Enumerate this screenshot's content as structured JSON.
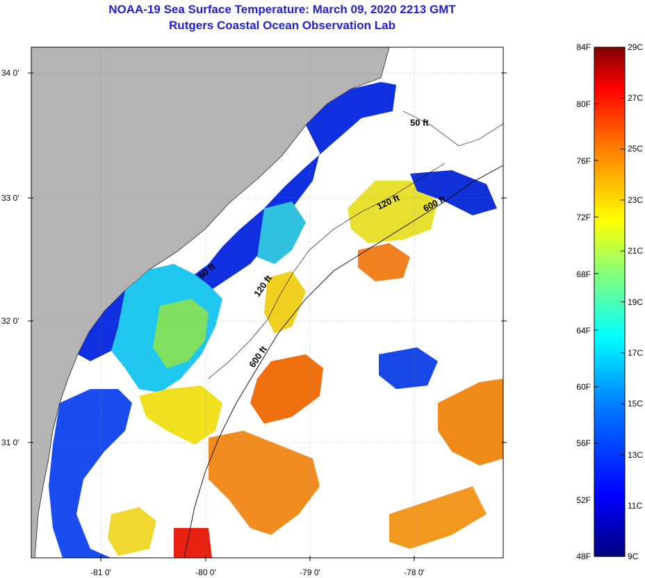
{
  "title": "NOAA-19 Sea Surface Temperature:  March 09, 2020 2213 GMT",
  "subtitle": "Rutgers Coastal Ocean Observation Lab",
  "lat_labels": [
    "34 0'",
    "33 0'",
    "32 0'",
    "31 0'"
  ],
  "lon_labels": [
    "-81 0'",
    "-80 0'",
    "-79 0'",
    "-78 0'"
  ],
  "contour_labels": [
    "50 ft",
    "120 ft",
    "600 ft",
    "60 ft",
    "120 ft",
    "600 ft"
  ],
  "colorbar": {
    "fahrenheit": [
      "84F",
      "80F",
      "76F",
      "72F",
      "68F",
      "64F",
      "60F",
      "56F",
      "52F",
      "48F"
    ],
    "celsius": [
      "29C",
      "27C",
      "25C",
      "23C",
      "21C",
      "19C",
      "17C",
      "15C",
      "13C",
      "11C",
      "9C"
    ],
    "colors": [
      "#00007f",
      "#0000ff",
      "#007fff",
      "#00ffff",
      "#7fff7f",
      "#ffff00",
      "#ff7f00",
      "#ff0000",
      "#7f0000"
    ]
  },
  "colors": {
    "land": "#b4b4b4",
    "title": "#1f1fcf"
  }
}
